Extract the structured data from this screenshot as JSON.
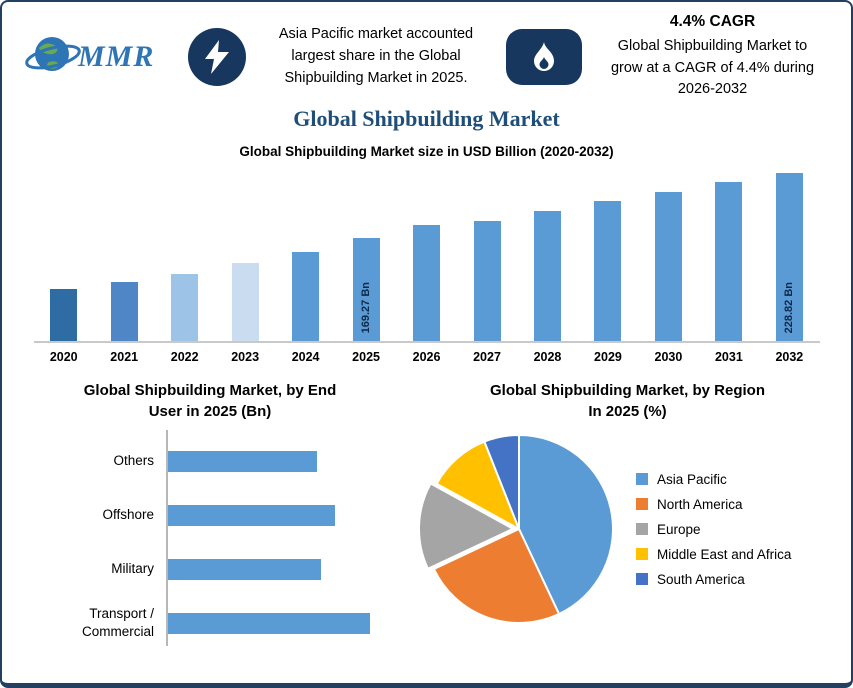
{
  "header": {
    "logo_text": "MMR",
    "left_note_lines": [
      "Asia Pacific market accounted",
      "largest share in the Global",
      "Shipbuilding Market in 2025."
    ],
    "cagr_title": "4.4% CAGR",
    "cagr_note_lines": [
      "Global Shipbuilding Market to",
      "grow at a CAGR of 4.4% during",
      "2026-2032"
    ]
  },
  "title": "Global Shipbuilding Market",
  "theme": {
    "navy": "#17375E",
    "title_blue": "#1F4E79",
    "primary_bar_blue": "#5B9BD5",
    "border_navy": "#244061"
  },
  "chart_data": [
    {
      "type": "bar",
      "title": "Global Shipbuilding Market size in USD Billion (2020-2032)",
      "xlabel": "",
      "ylabel": "",
      "unit": "USD Billion",
      "categories": [
        "2020",
        "2021",
        "2022",
        "2023",
        "2024",
        "2025",
        "2026",
        "2027",
        "2028",
        "2029",
        "2030",
        "2031",
        "2032"
      ],
      "values": [
        122.5,
        129,
        136.5,
        146,
        156.5,
        169.27,
        180.5,
        185,
        194,
        202.5,
        211.5,
        220.5,
        228.82
      ],
      "data_labels": [
        "",
        "",
        "",
        "",
        "",
        "169.27 Bn",
        "",
        "",
        "",
        "",
        "",
        "",
        "228.82 Bn"
      ],
      "bar_colors": [
        "#2E6DA4",
        "#4E86C6",
        "#9DC3E6",
        "#C9DCF0",
        "#5B9BD5",
        "#5B9BD5",
        "#5B9BD5",
        "#5B9BD5",
        "#5B9BD5",
        "#5B9BD5",
        "#5B9BD5",
        "#5B9BD5",
        "#5B9BD5"
      ],
      "axis": {
        "y_baseline": 75,
        "y_max": 232,
        "gridlines": false,
        "y_axis_visible": false
      }
    },
    {
      "type": "bar",
      "orientation": "horizontal",
      "title": "Global Shipbuilding Market, by End User in 2025 (Bn)",
      "title_lines": [
        "Global Shipbuilding Market, by End",
        "User in 2025 (Bn)"
      ],
      "categories": [
        "Others",
        "Offshore",
        "Military",
        "Transport / Commercial"
      ],
      "values": [
        37.5,
        42,
        38.5,
        51
      ],
      "bar_color": "#5B9BD5",
      "xlim": [
        0,
        60
      ],
      "gridlines": false
    },
    {
      "type": "pie",
      "title": "Global Shipbuilding Market, by Region In 2025 (%)",
      "title_lines": [
        "Global Shipbuilding Market, by Region",
        "In 2025 (%)"
      ],
      "labels": [
        "Asia Pacific",
        "North America",
        "Europe",
        "Middle East and Africa",
        "South America"
      ],
      "values": [
        43,
        25,
        15,
        11,
        6
      ],
      "colors": [
        "#5B9BD5",
        "#ED7D31",
        "#A5A5A5",
        "#FFC000",
        "#4472C4"
      ],
      "legend_position": "right",
      "start_angle": -90,
      "exploded_slice": "Europe"
    }
  ]
}
